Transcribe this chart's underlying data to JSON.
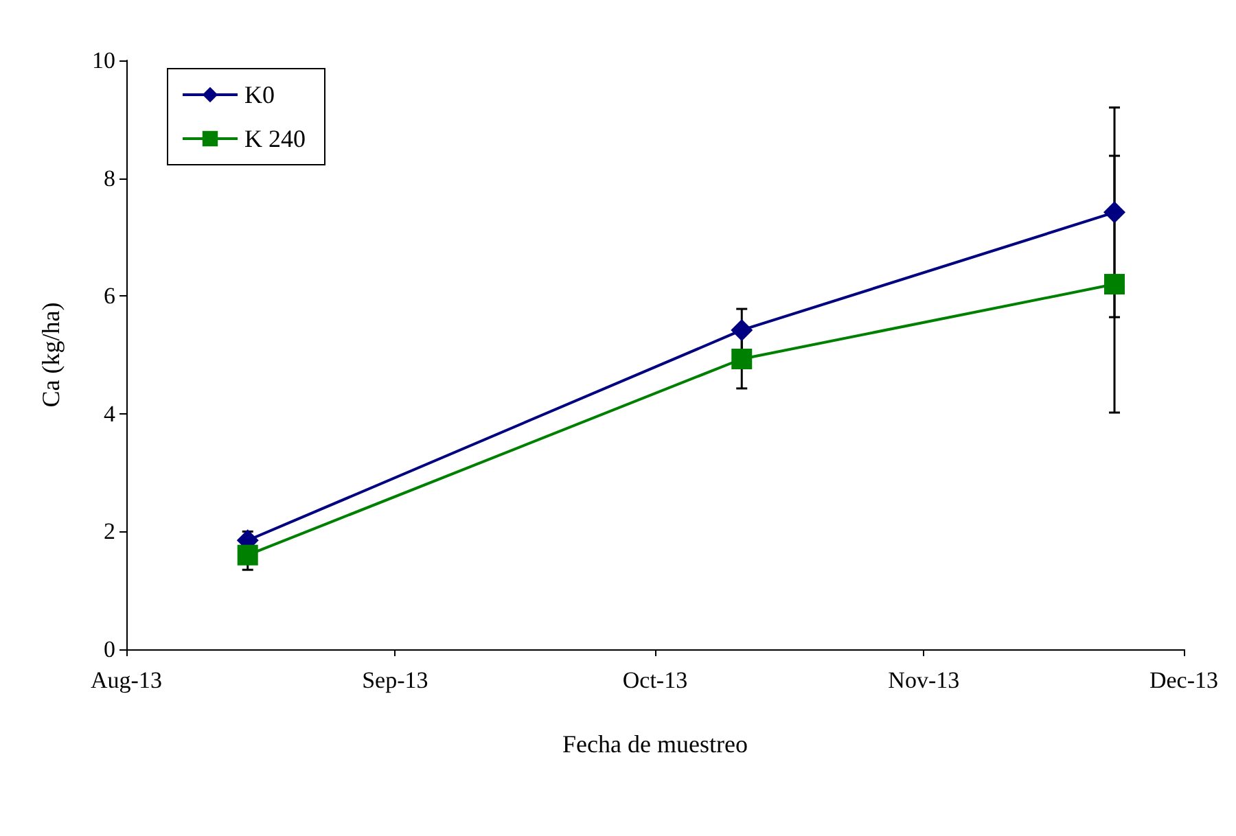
{
  "chart_data": {
    "type": "line",
    "xlabel": "Fecha de muestreo",
    "ylabel": "Ca (kg/ha)",
    "x": [
      "2013-08-15",
      "2013-10-11",
      "2013-11-23"
    ],
    "series": [
      {
        "name": "K0",
        "color": "#000080",
        "marker": "diamond",
        "values": [
          1.85,
          5.42,
          7.42
        ],
        "errors": [
          0.15,
          0.36,
          1.78
        ]
      },
      {
        "name": "K 240",
        "color": "#008000",
        "marker": "square",
        "values": [
          1.6,
          4.93,
          6.2
        ],
        "errors": [
          0.25,
          0.5,
          2.18
        ]
      }
    ],
    "xlim": [
      "2013-08-01",
      "2013-12-01"
    ],
    "xticks": [
      {
        "value": "2013-08-01",
        "label": "Aug-13"
      },
      {
        "value": "2013-09-01",
        "label": "Sep-13"
      },
      {
        "value": "2013-10-01",
        "label": "Oct-13"
      },
      {
        "value": "2013-11-01",
        "label": "Nov-13"
      },
      {
        "value": "2013-12-01",
        "label": "Dec-13"
      }
    ],
    "ylim": [
      0,
      10
    ],
    "yticks": [
      0,
      2,
      4,
      6,
      8,
      10
    ],
    "grid": false,
    "legend": "top left",
    "line_style": "solid"
  }
}
